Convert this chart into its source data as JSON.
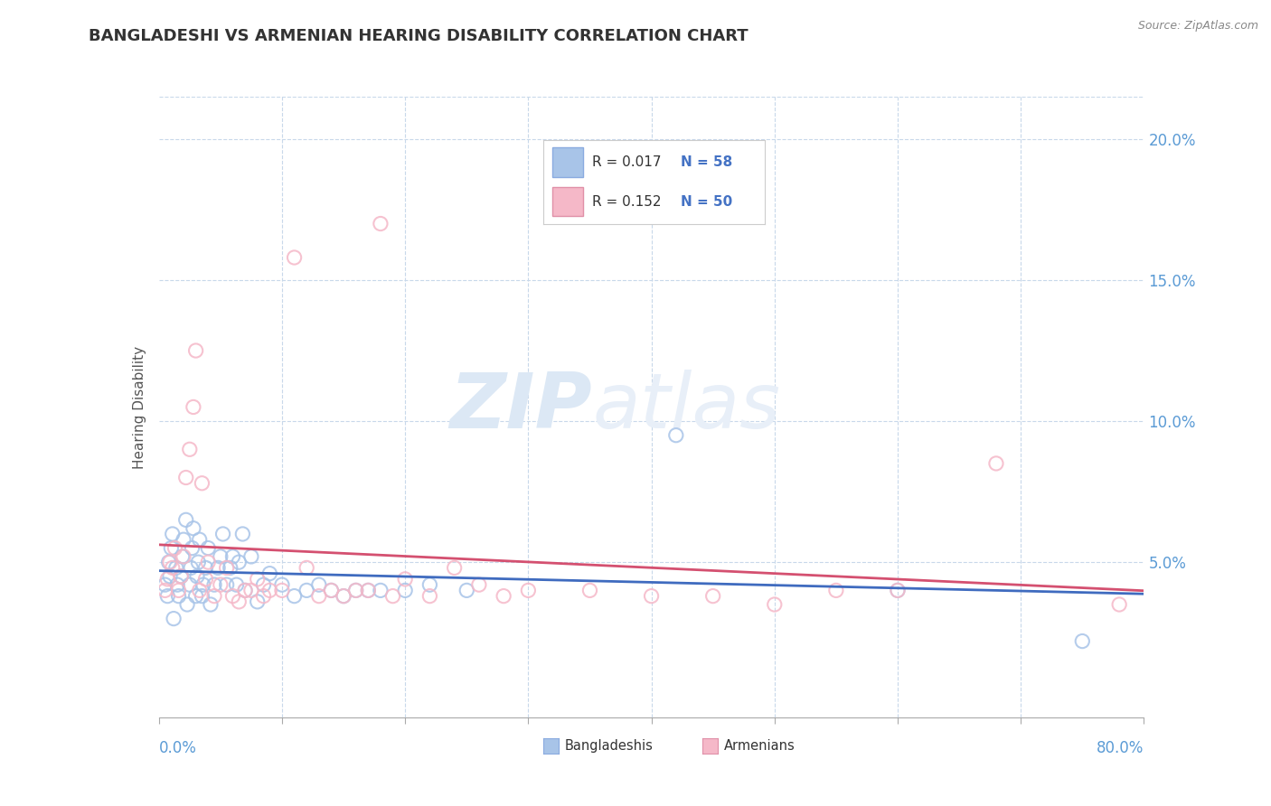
{
  "title": "BANGLADESHI VS ARMENIAN HEARING DISABILITY CORRELATION CHART",
  "source": "Source: ZipAtlas.com",
  "ylabel": "Hearing Disability",
  "xlim": [
    0.0,
    0.8
  ],
  "ylim": [
    -0.005,
    0.215
  ],
  "yticks": [
    0.05,
    0.1,
    0.15,
    0.2
  ],
  "ytick_labels": [
    "5.0%",
    "10.0%",
    "15.0%",
    "20.0%"
  ],
  "blue_color": "#a8c4e8",
  "pink_color": "#f5b8c8",
  "trend_blue": "#3f6bbf",
  "trend_pink": "#d45070",
  "title_color": "#333333",
  "axis_label_color": "#5b9bd5",
  "legend_text_color_r": "#333333",
  "legend_text_color_n": "#4472c4",
  "watermark_color": "#dce8f5",
  "background_color": "#ffffff",
  "grid_color": "#c8d8ea",
  "bangladeshi_x": [
    0.005,
    0.007,
    0.008,
    0.009,
    0.01,
    0.011,
    0.012,
    0.014,
    0.015,
    0.016,
    0.018,
    0.019,
    0.02,
    0.022,
    0.023,
    0.025,
    0.026,
    0.027,
    0.028,
    0.03,
    0.031,
    0.032,
    0.033,
    0.035,
    0.036,
    0.038,
    0.04,
    0.042,
    0.045,
    0.048,
    0.05,
    0.052,
    0.055,
    0.058,
    0.06,
    0.063,
    0.065,
    0.068,
    0.07,
    0.075,
    0.08,
    0.085,
    0.09,
    0.1,
    0.11,
    0.12,
    0.13,
    0.14,
    0.15,
    0.16,
    0.17,
    0.18,
    0.2,
    0.22,
    0.25,
    0.42,
    0.6,
    0.75
  ],
  "bangladeshi_y": [
    0.042,
    0.038,
    0.05,
    0.045,
    0.055,
    0.06,
    0.03,
    0.048,
    0.042,
    0.038,
    0.045,
    0.052,
    0.058,
    0.065,
    0.035,
    0.042,
    0.048,
    0.055,
    0.062,
    0.038,
    0.045,
    0.05,
    0.058,
    0.038,
    0.042,
    0.048,
    0.055,
    0.035,
    0.042,
    0.048,
    0.052,
    0.06,
    0.042,
    0.048,
    0.052,
    0.042,
    0.05,
    0.06,
    0.04,
    0.052,
    0.036,
    0.042,
    0.046,
    0.042,
    0.038,
    0.04,
    0.042,
    0.04,
    0.038,
    0.04,
    0.04,
    0.04,
    0.04,
    0.042,
    0.04,
    0.095,
    0.04,
    0.022
  ],
  "armenian_x": [
    0.005,
    0.007,
    0.009,
    0.011,
    0.013,
    0.016,
    0.018,
    0.02,
    0.022,
    0.025,
    0.028,
    0.03,
    0.033,
    0.035,
    0.038,
    0.04,
    0.045,
    0.05,
    0.055,
    0.06,
    0.065,
    0.07,
    0.075,
    0.08,
    0.085,
    0.09,
    0.1,
    0.11,
    0.12,
    0.13,
    0.14,
    0.15,
    0.16,
    0.17,
    0.18,
    0.19,
    0.2,
    0.22,
    0.24,
    0.26,
    0.28,
    0.3,
    0.35,
    0.4,
    0.45,
    0.5,
    0.55,
    0.6,
    0.68,
    0.78
  ],
  "armenian_y": [
    0.04,
    0.044,
    0.05,
    0.048,
    0.055,
    0.04,
    0.045,
    0.052,
    0.08,
    0.09,
    0.105,
    0.125,
    0.04,
    0.078,
    0.044,
    0.05,
    0.038,
    0.042,
    0.048,
    0.038,
    0.036,
    0.04,
    0.04,
    0.044,
    0.038,
    0.04,
    0.04,
    0.158,
    0.048,
    0.038,
    0.04,
    0.038,
    0.04,
    0.04,
    0.17,
    0.038,
    0.044,
    0.038,
    0.048,
    0.042,
    0.038,
    0.04,
    0.04,
    0.038,
    0.038,
    0.035,
    0.04,
    0.04,
    0.085,
    0.035
  ]
}
